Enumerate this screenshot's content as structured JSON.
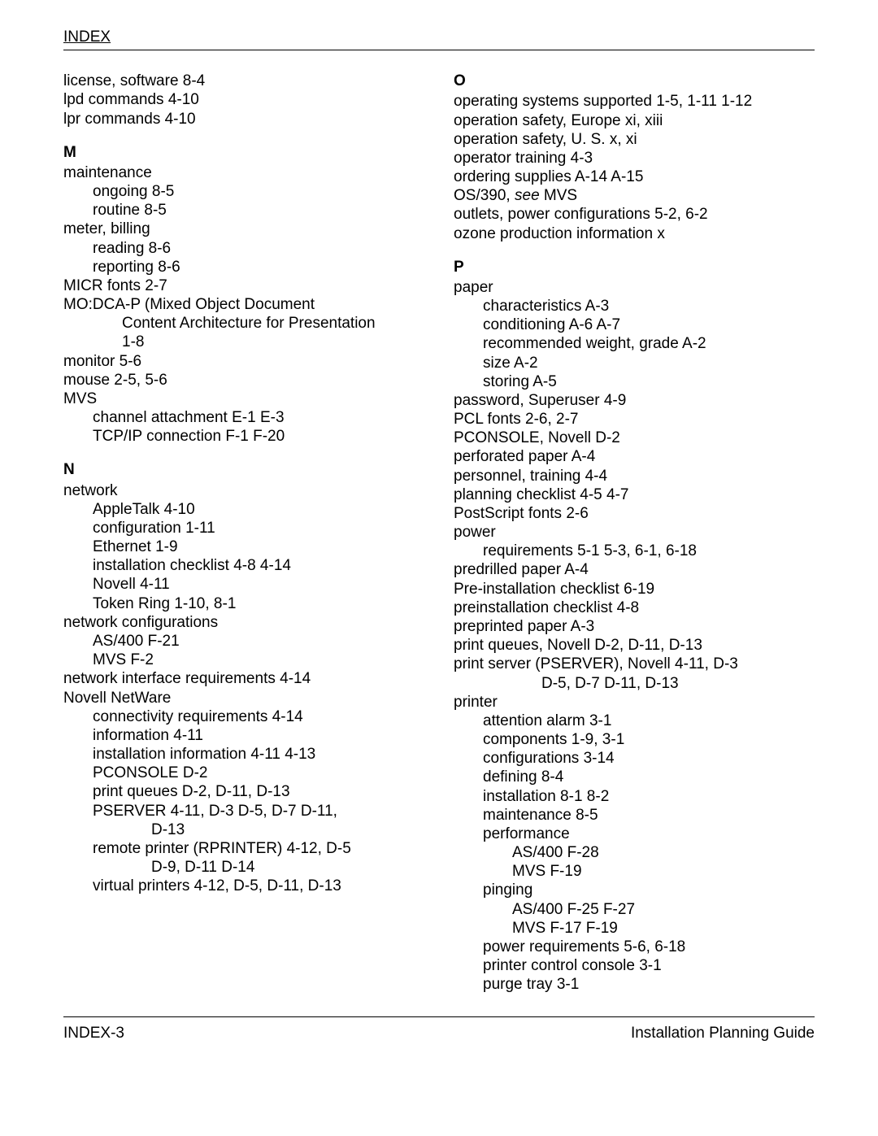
{
  "header": {
    "title": "INDEX"
  },
  "footer": {
    "left": "INDEX-3",
    "right": "Installation Planning Guide"
  },
  "col1": [
    {
      "type": "line",
      "indent": 0,
      "text": "license, software 8-4"
    },
    {
      "type": "line",
      "indent": 0,
      "text": "lpd commands 4-10"
    },
    {
      "type": "line",
      "indent": 0,
      "text": "lpr commands 4-10"
    },
    {
      "type": "letter",
      "text": "M"
    },
    {
      "type": "line",
      "indent": 0,
      "text": "maintenance"
    },
    {
      "type": "line",
      "indent": 1,
      "text": "ongoing 8-5"
    },
    {
      "type": "line",
      "indent": 1,
      "text": "routine 8-5"
    },
    {
      "type": "line",
      "indent": 0,
      "text": "meter, billing"
    },
    {
      "type": "line",
      "indent": 1,
      "text": "reading 8-6"
    },
    {
      "type": "line",
      "indent": 1,
      "text": "reporting 8-6"
    },
    {
      "type": "line",
      "indent": 0,
      "text": "MICR fonts 2-7"
    },
    {
      "type": "line",
      "indent": 0,
      "text": "MO:DCA-P (Mixed Object Document"
    },
    {
      "type": "line",
      "indent": 2,
      "text": "Content Architecture for Presentation"
    },
    {
      "type": "line",
      "indent": 2,
      "text": "1-8"
    },
    {
      "type": "line",
      "indent": 0,
      "text": "monitor 5-6"
    },
    {
      "type": "line",
      "indent": 0,
      "text": "mouse 2-5, 5-6"
    },
    {
      "type": "line",
      "indent": 0,
      "text": "MVS"
    },
    {
      "type": "line",
      "indent": 1,
      "text": "channel attachment E-1  E-3"
    },
    {
      "type": "line",
      "indent": 1,
      "text": "TCP/IP connection F-1  F-20"
    },
    {
      "type": "letter",
      "text": "N"
    },
    {
      "type": "line",
      "indent": 0,
      "text": "network"
    },
    {
      "type": "line",
      "indent": 1,
      "text": "AppleTalk 4-10"
    },
    {
      "type": "line",
      "indent": 1,
      "text": "configuration 1-11"
    },
    {
      "type": "line",
      "indent": 1,
      "text": "Ethernet 1-9"
    },
    {
      "type": "line",
      "indent": 1,
      "text": "installation checklist 4-8  4-14"
    },
    {
      "type": "line",
      "indent": 1,
      "text": "Novell 4-11"
    },
    {
      "type": "line",
      "indent": 1,
      "text": "Token Ring 1-10, 8-1"
    },
    {
      "type": "line",
      "indent": 0,
      "text": "network configurations"
    },
    {
      "type": "line",
      "indent": 1,
      "text": "AS/400 F-21"
    },
    {
      "type": "line",
      "indent": 1,
      "text": "MVS F-2"
    },
    {
      "type": "line",
      "indent": 0,
      "text": "network interface requirements 4-14"
    },
    {
      "type": "line",
      "indent": 0,
      "text": "Novell NetWare"
    },
    {
      "type": "line",
      "indent": 1,
      "text": "connectivity requirements 4-14"
    },
    {
      "type": "line",
      "indent": 1,
      "text": "information 4-11"
    },
    {
      "type": "line",
      "indent": 1,
      "text": "installation information 4-11  4-13"
    },
    {
      "type": "line",
      "indent": 1,
      "text": "PCONSOLE D-2"
    },
    {
      "type": "line",
      "indent": 1,
      "text": "print queues D-2, D-11, D-13"
    },
    {
      "type": "line",
      "indent": 1,
      "text": "PSERVER 4-11, D-3  D-5, D-7  D-11,"
    },
    {
      "type": "line",
      "indent": 3,
      "text": "D-13"
    },
    {
      "type": "line",
      "indent": 1,
      "text": "remote printer (RPRINTER) 4-12, D-5 "
    },
    {
      "type": "line",
      "indent": 3,
      "text": "D-9, D-11  D-14"
    },
    {
      "type": "line",
      "indent": 1,
      "text": "virtual printers 4-12, D-5, D-11, D-13"
    }
  ],
  "col2": [
    {
      "type": "letter",
      "text": "O",
      "first": true
    },
    {
      "type": "line",
      "indent": 0,
      "text": "operating systems supported 1-5, 1-11  1-12"
    },
    {
      "type": "line",
      "indent": 0,
      "text": "operation safety, Europe xi, xiii"
    },
    {
      "type": "line",
      "indent": 0,
      "text": "operation safety, U. S. x, xi"
    },
    {
      "type": "line",
      "indent": 0,
      "text": "operator training 4-3"
    },
    {
      "type": "line",
      "indent": 0,
      "text": "ordering supplies A-14  A-15"
    },
    {
      "type": "see",
      "indent": 0,
      "pre": "OS/390, ",
      "see": "see",
      "post": " MVS"
    },
    {
      "type": "line",
      "indent": 0,
      "text": "outlets, power configurations 5-2, 6-2"
    },
    {
      "type": "line",
      "indent": 0,
      "text": "ozone production information x"
    },
    {
      "type": "letter",
      "text": "P"
    },
    {
      "type": "line",
      "indent": 0,
      "text": "paper"
    },
    {
      "type": "line",
      "indent": 1,
      "text": "characteristics A-3"
    },
    {
      "type": "line",
      "indent": 1,
      "text": "conditioning A-6  A-7"
    },
    {
      "type": "line",
      "indent": 1,
      "text": "recommended weight, grade A-2"
    },
    {
      "type": "line",
      "indent": 1,
      "text": "size A-2"
    },
    {
      "type": "line",
      "indent": 1,
      "text": "storing A-5"
    },
    {
      "type": "line",
      "indent": 0,
      "text": "password, Superuser 4-9"
    },
    {
      "type": "line",
      "indent": 0,
      "text": "PCL fonts 2-6, 2-7"
    },
    {
      "type": "line",
      "indent": 0,
      "text": "PCONSOLE, Novell D-2"
    },
    {
      "type": "line",
      "indent": 0,
      "text": "perforated paper A-4"
    },
    {
      "type": "line",
      "indent": 0,
      "text": "personnel, training 4-4"
    },
    {
      "type": "line",
      "indent": 0,
      "text": "planning checklist 4-5  4-7"
    },
    {
      "type": "line",
      "indent": 0,
      "text": "PostScript fonts 2-6"
    },
    {
      "type": "line",
      "indent": 0,
      "text": "power"
    },
    {
      "type": "line",
      "indent": 1,
      "text": "requirements 5-1  5-3, 6-1, 6-18"
    },
    {
      "type": "line",
      "indent": 0,
      "text": "predrilled paper A-4"
    },
    {
      "type": "line",
      "indent": 0,
      "text": "Pre-installation checklist 6-19"
    },
    {
      "type": "line",
      "indent": 0,
      "text": "preinstallation checklist 4-8"
    },
    {
      "type": "line",
      "indent": 0,
      "text": "preprinted paper A-3"
    },
    {
      "type": "line",
      "indent": 0,
      "text": "print queues, Novell D-2, D-11, D-13"
    },
    {
      "type": "line",
      "indent": 0,
      "text": "print server (PSERVER), Novell 4-11, D-3 "
    },
    {
      "type": "line",
      "indent": 3,
      "text": "D-5, D-7  D-11, D-13"
    },
    {
      "type": "line",
      "indent": 0,
      "text": "printer"
    },
    {
      "type": "line",
      "indent": 1,
      "text": "attention alarm 3-1"
    },
    {
      "type": "line",
      "indent": 1,
      "text": "components 1-9, 3-1"
    },
    {
      "type": "line",
      "indent": 1,
      "text": "configurations 3-14"
    },
    {
      "type": "line",
      "indent": 1,
      "text": "defining 8-4"
    },
    {
      "type": "line",
      "indent": 1,
      "text": "installation 8-1  8-2"
    },
    {
      "type": "line",
      "indent": 1,
      "text": "maintenance 8-5"
    },
    {
      "type": "line",
      "indent": 1,
      "text": "performance"
    },
    {
      "type": "line",
      "indent": 2,
      "text": "AS/400 F-28"
    },
    {
      "type": "line",
      "indent": 2,
      "text": "MVS F-19"
    },
    {
      "type": "line",
      "indent": 1,
      "text": "pinging"
    },
    {
      "type": "line",
      "indent": 2,
      "text": "AS/400 F-25  F-27"
    },
    {
      "type": "line",
      "indent": 2,
      "text": "MVS F-17  F-19"
    },
    {
      "type": "line",
      "indent": 1,
      "text": "power requirements 5-6, 6-18"
    },
    {
      "type": "line",
      "indent": 1,
      "text": "printer control console 3-1"
    },
    {
      "type": "line",
      "indent": 1,
      "text": "purge tray 3-1"
    }
  ]
}
